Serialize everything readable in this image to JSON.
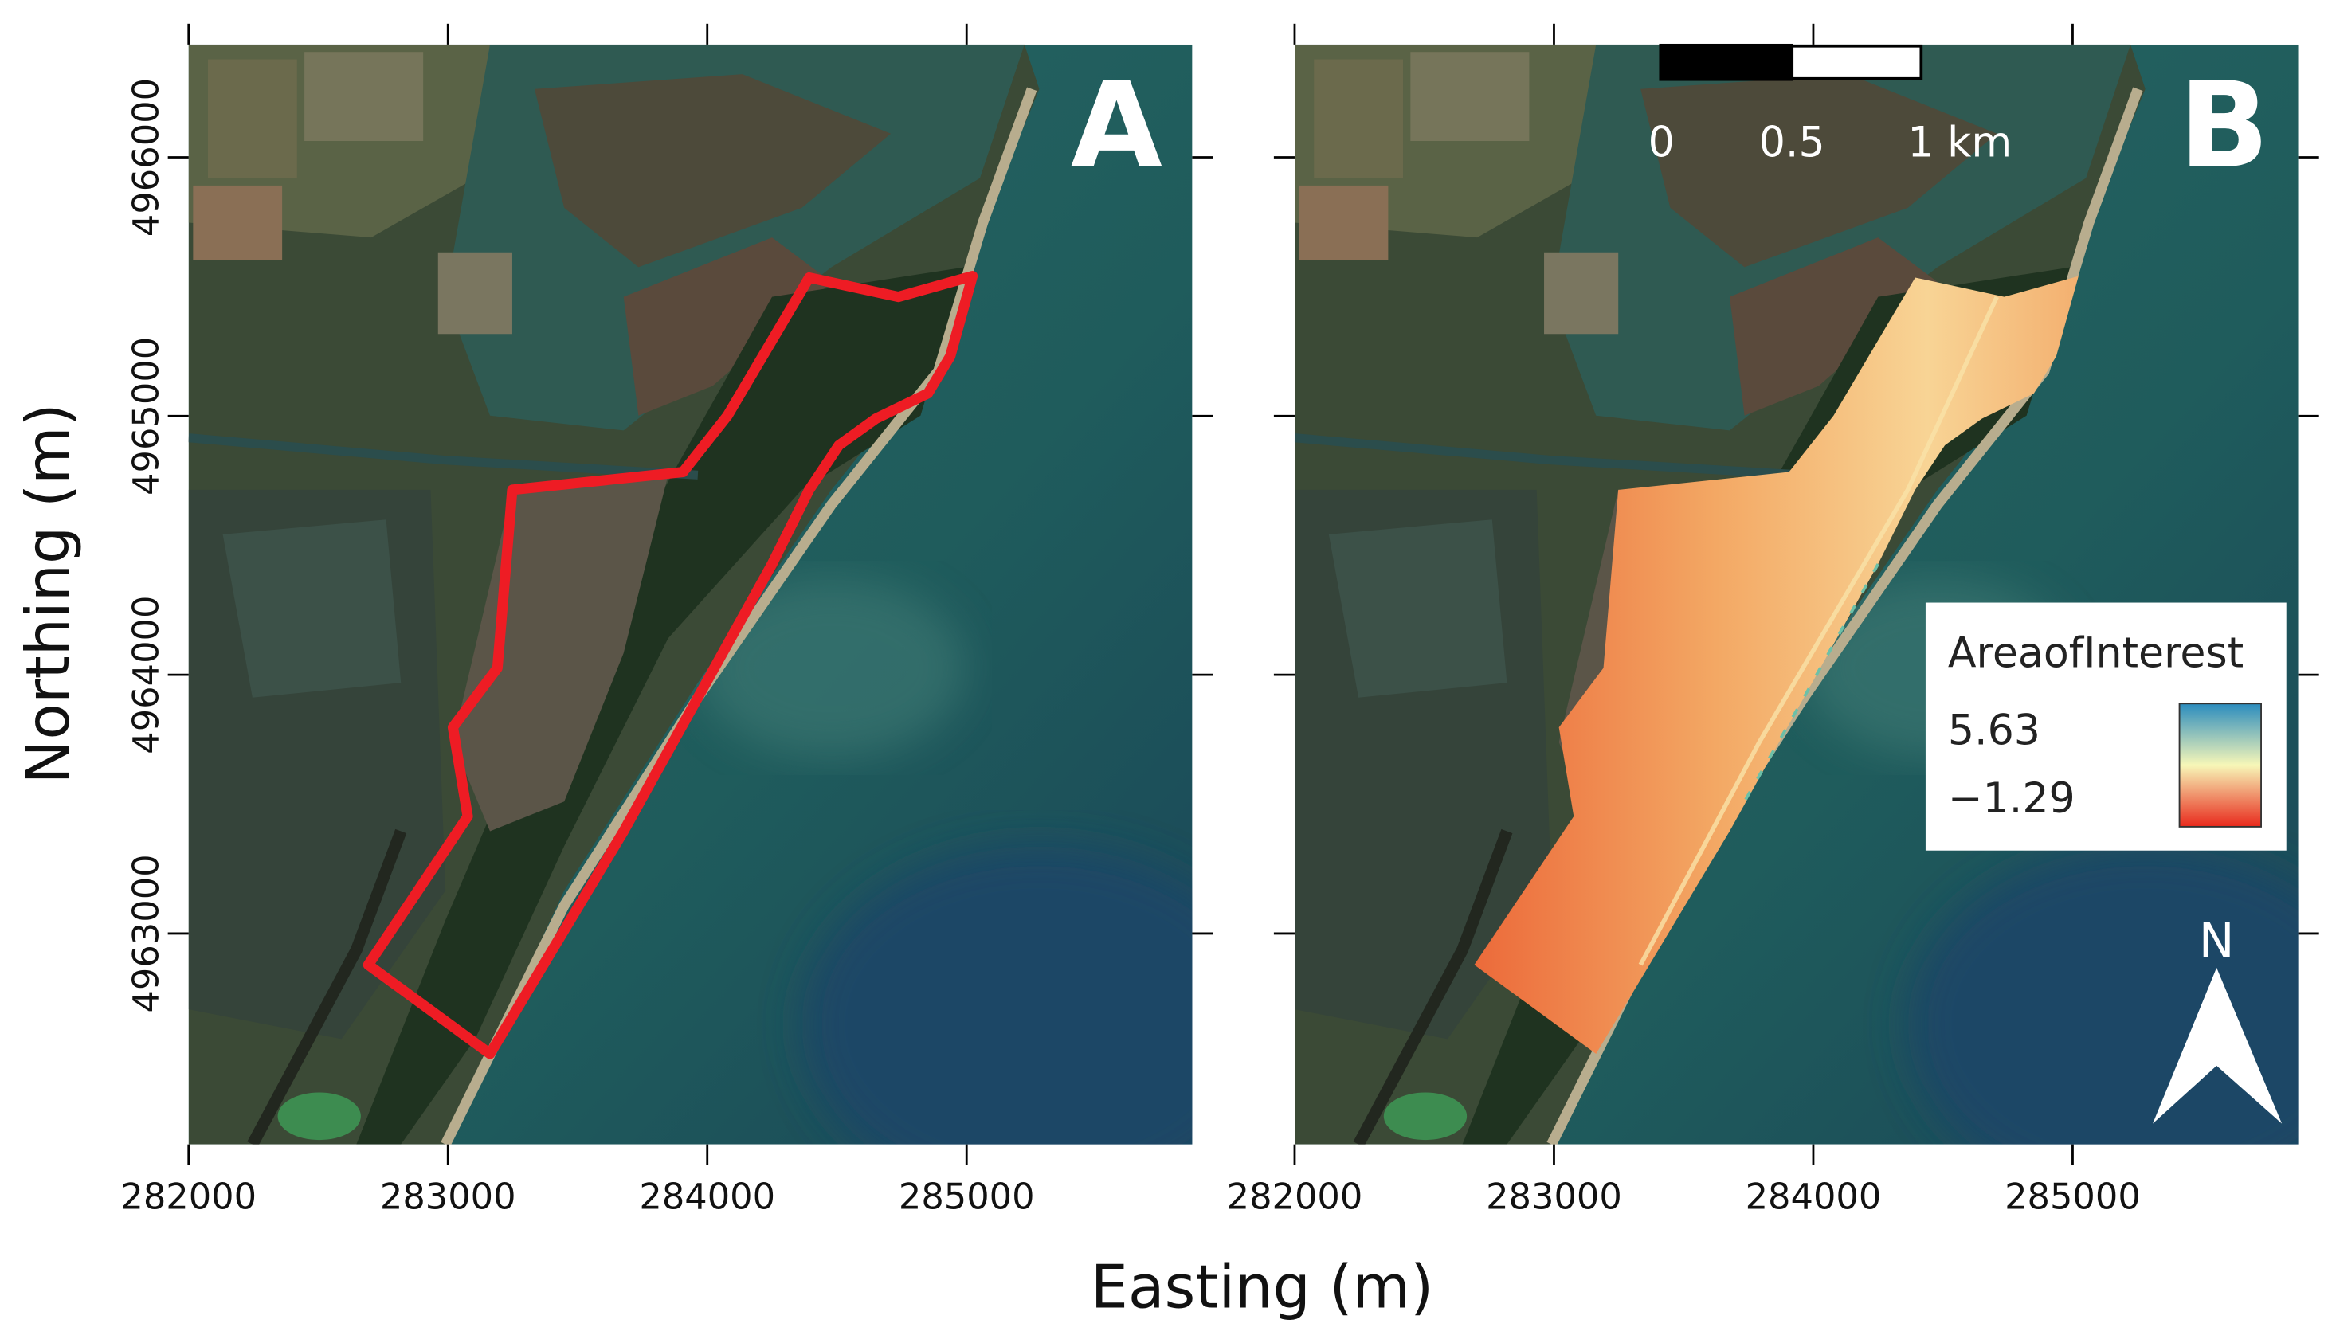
{
  "figure": {
    "xlabel": "Easting (m)",
    "ylabel": "Northing (m)"
  },
  "axes": {
    "xlim": [
      282000,
      285870
    ],
    "ylim": [
      4962185,
      4966436
    ],
    "xticks": [
      282000,
      283000,
      284000,
      285000
    ],
    "yticks": [
      4963000,
      4964000,
      4965000,
      4966000
    ]
  },
  "panels": [
    {
      "label": "A"
    },
    {
      "label": "B"
    }
  ],
  "scale_bar": {
    "labels": [
      "0",
      "0.5",
      "1 km"
    ]
  },
  "north_arrow": {
    "label": "N"
  },
  "legend": {
    "title": "AreaofInterest",
    "max": 5.63,
    "min": {
      "value": -1.29,
      "label": "−1.29"
    },
    "colors": [
      "#2b8cbe",
      "#f7f7b8",
      "#e8291c"
    ]
  }
}
